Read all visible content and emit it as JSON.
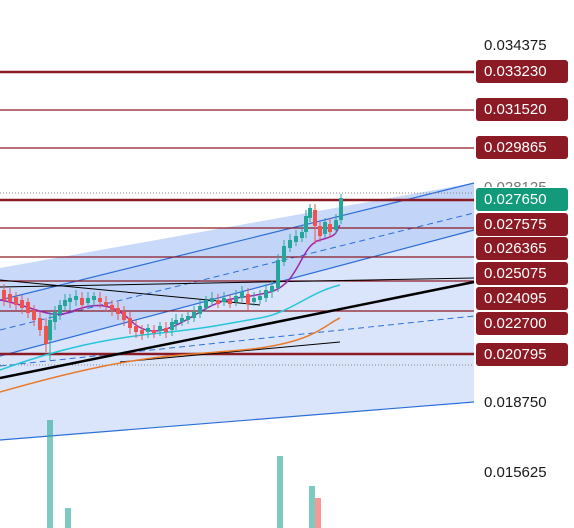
{
  "price_axis": {
    "ticks": [
      "0.034375",
      "0.018750",
      "0.015625"
    ],
    "partial_tick": "0.028125"
  },
  "price_tags": [
    {
      "label": "0.033230",
      "color": "#8b1a24"
    },
    {
      "label": "0.031520",
      "color": "#8b1a24"
    },
    {
      "label": "0.029865",
      "color": "#8b1a24"
    },
    {
      "label": "0.027650",
      "color": "#139a7a"
    },
    {
      "label": "0.027575",
      "color": "#8b1a24"
    },
    {
      "label": "0.026365",
      "color": "#8b1a24"
    },
    {
      "label": "0.025075",
      "color": "#8b1a24"
    },
    {
      "label": "0.024095",
      "color": "#8b1a24"
    },
    {
      "label": "0.022700",
      "color": "#8b1a24"
    },
    {
      "label": "0.020795",
      "color": "#8b1a24"
    }
  ],
  "colors": {
    "up_candle": "#26a69a",
    "down_candle": "#ef5350",
    "channel_fill": "#bcd0f7",
    "channel_line": "#2d6fd8",
    "support_line": "#8b1a24",
    "trend_line": "#000000",
    "ma_purple": "#9c27b0",
    "ma_teal": "#26c6da",
    "ma_orange": "#e87a2c"
  }
}
